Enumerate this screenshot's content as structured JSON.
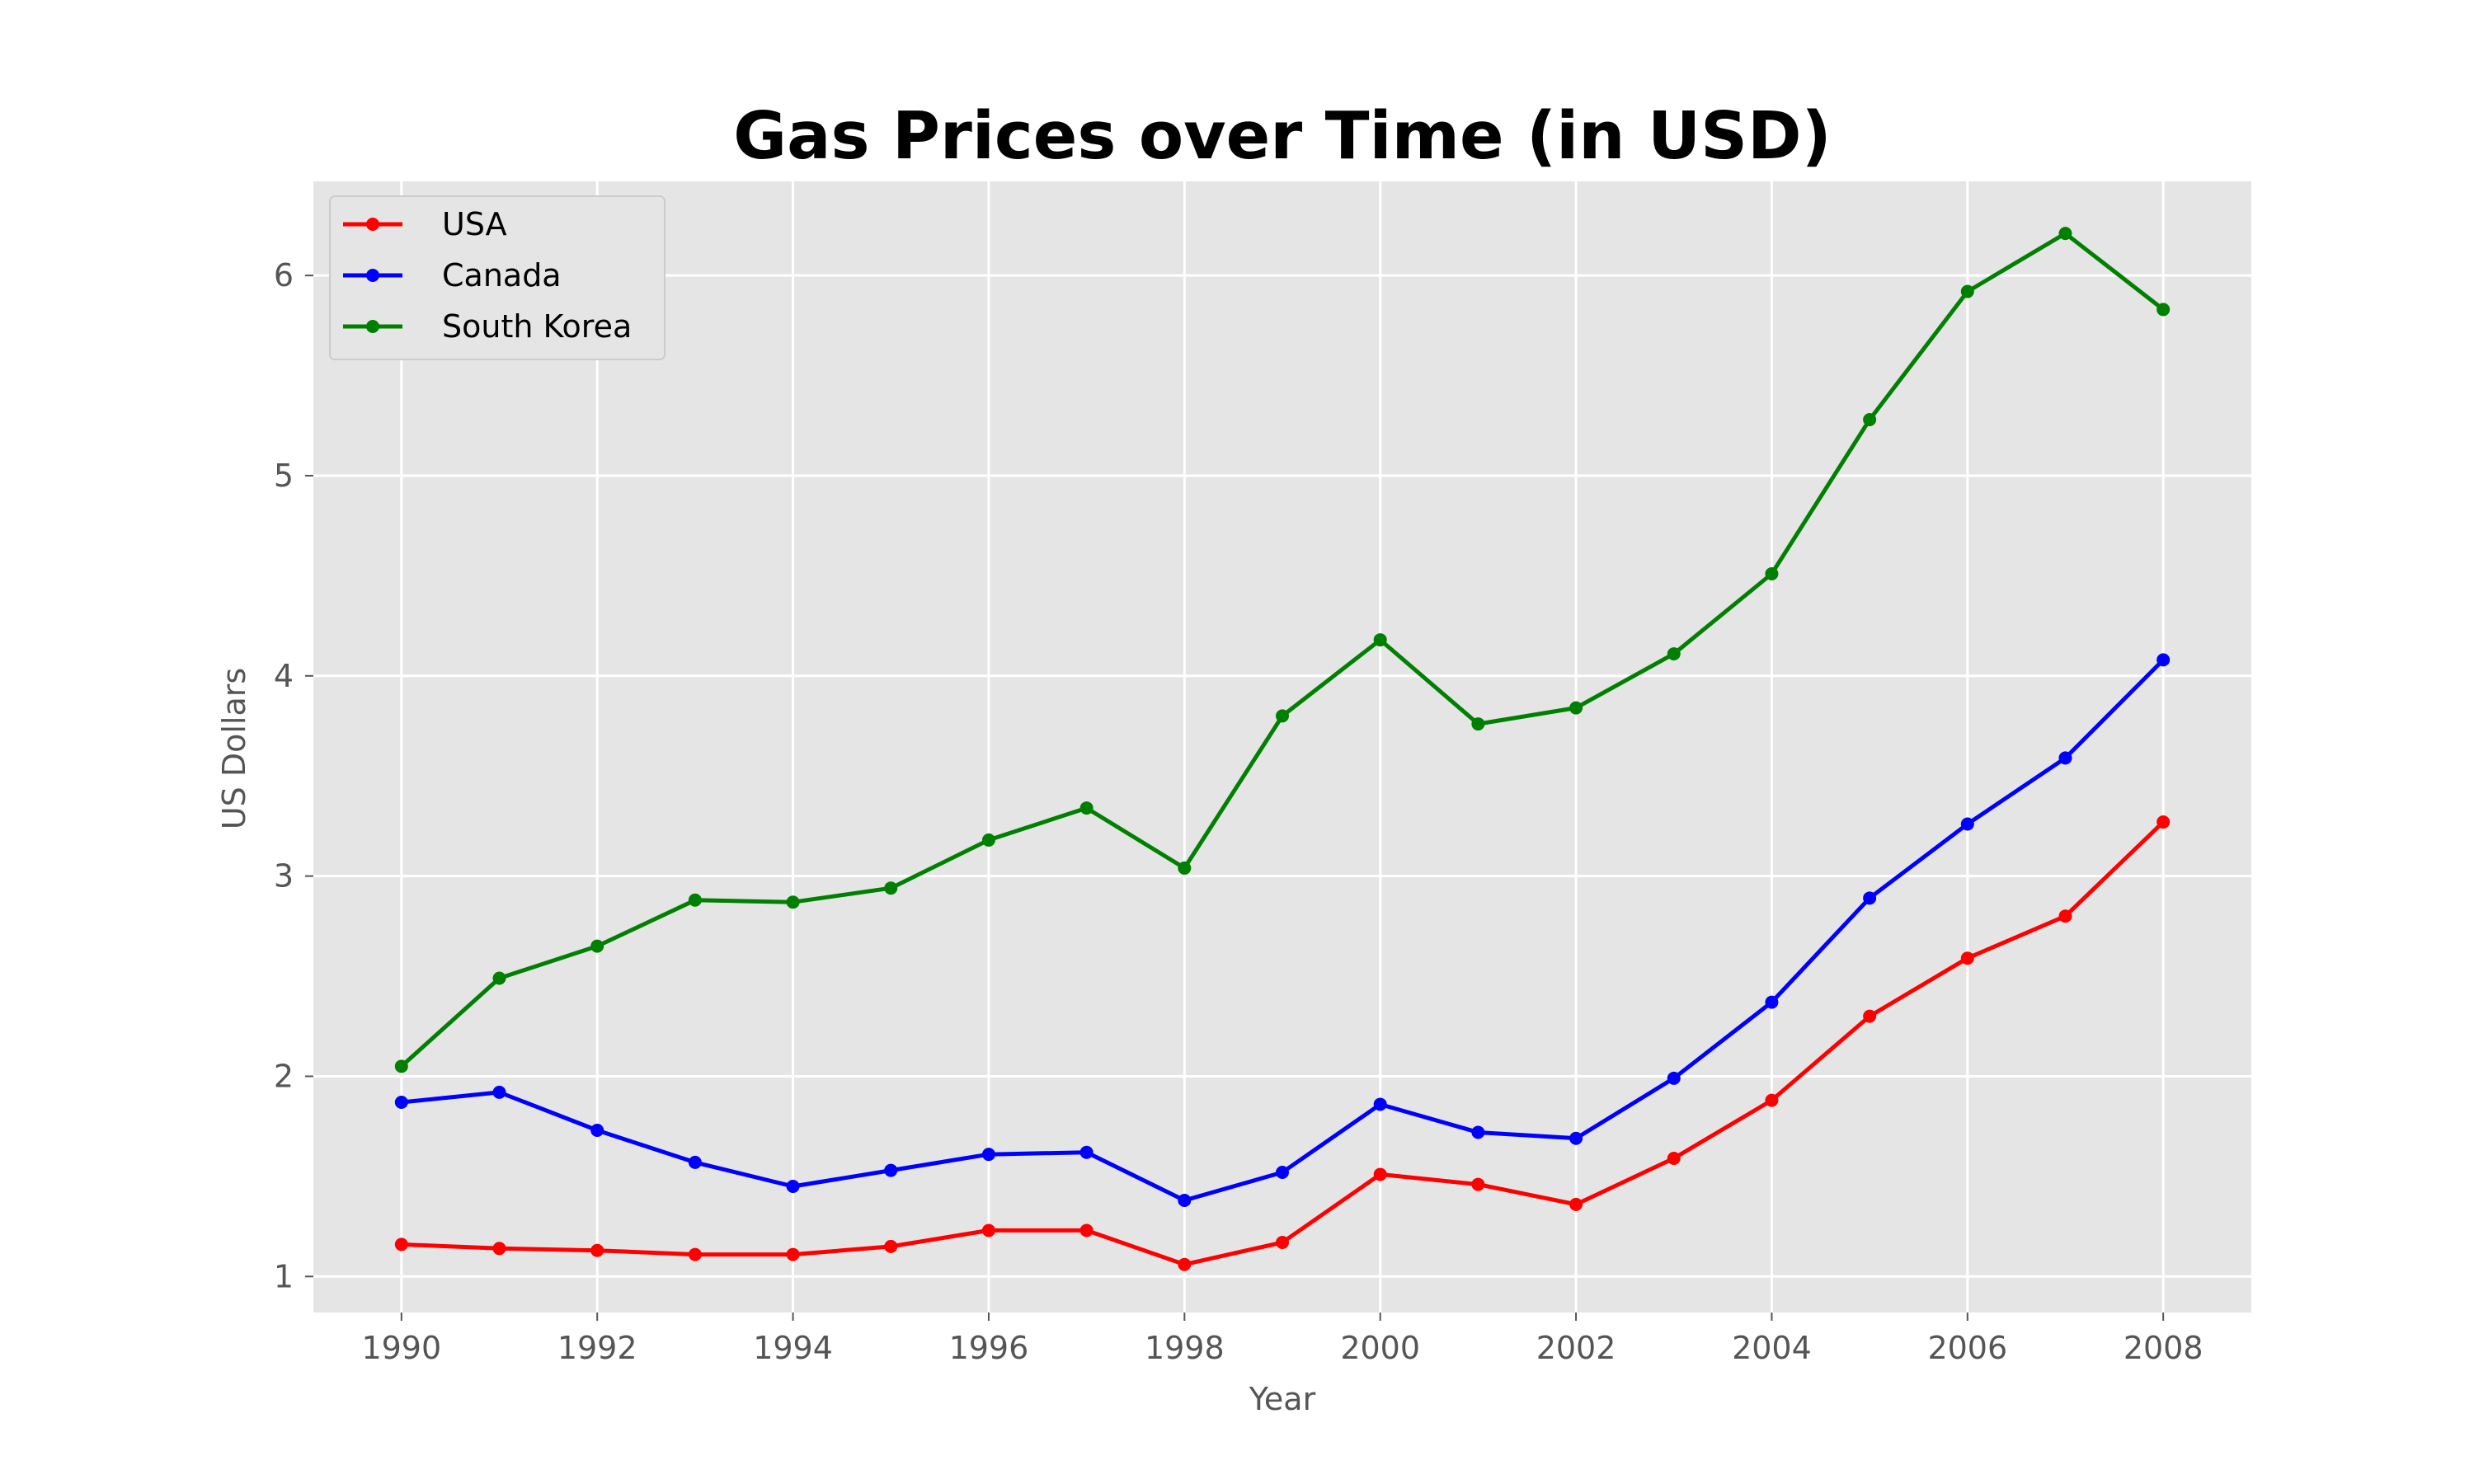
{
  "chart_data": {
    "type": "line",
    "title": "Gas Prices over Time (in USD)",
    "xlabel": "Year",
    "ylabel": "US Dollars",
    "x": [
      1990,
      1991,
      1992,
      1993,
      1994,
      1995,
      1996,
      1997,
      1998,
      1999,
      2000,
      2001,
      2002,
      2003,
      2004,
      2005,
      2006,
      2007,
      2008
    ],
    "xlim": [
      1989.1,
      2008.9
    ],
    "ylim": [
      0.82,
      6.47
    ],
    "xticks": [
      1990,
      1992,
      1994,
      1996,
      1998,
      2000,
      2002,
      2004,
      2006,
      2008
    ],
    "yticks": [
      1,
      2,
      3,
      4,
      5,
      6
    ],
    "grid": true,
    "legend_position": "top-left",
    "plot_background": "#e5e5e5",
    "grid_color": "#ffffff",
    "series": [
      {
        "name": "USA",
        "color": "#ff0000",
        "marker": "circle",
        "values": [
          1.16,
          1.14,
          1.13,
          1.11,
          1.11,
          1.15,
          1.23,
          1.23,
          1.06,
          1.17,
          1.51,
          1.46,
          1.36,
          1.59,
          1.88,
          2.3,
          2.59,
          2.8,
          3.27
        ]
      },
      {
        "name": "Canada",
        "color": "#0000ff",
        "marker": "circle",
        "values": [
          1.87,
          1.92,
          1.73,
          1.57,
          1.45,
          1.53,
          1.61,
          1.62,
          1.38,
          1.52,
          1.86,
          1.72,
          1.69,
          1.99,
          2.37,
          2.89,
          3.26,
          3.59,
          4.08
        ]
      },
      {
        "name": "South Korea",
        "color": "#008000",
        "marker": "circle",
        "values": [
          2.05,
          2.49,
          2.65,
          2.88,
          2.87,
          2.94,
          3.18,
          3.34,
          3.04,
          3.8,
          4.18,
          3.76,
          3.84,
          4.11,
          4.51,
          5.28,
          5.92,
          6.21,
          5.83
        ]
      }
    ]
  }
}
